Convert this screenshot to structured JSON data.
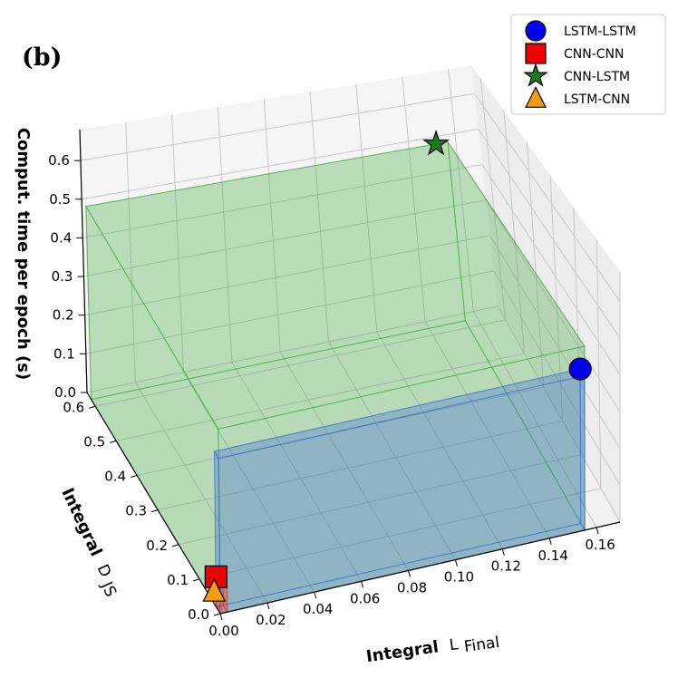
{
  "panel_label": "(b)",
  "chart_data": {
    "type": "scatter3d",
    "axes": {
      "x": {
        "label": "Integral",
        "label_math": "L",
        "label_sub": "Final",
        "ticks": [
          "0.00",
          "0.02",
          "0.04",
          "0.06",
          "0.08",
          "0.10",
          "0.12",
          "0.14",
          "0.16"
        ],
        "range": [
          0,
          0.17
        ]
      },
      "y": {
        "label": "Integral",
        "label_math": "D",
        "label_sub": "JS",
        "ticks": [
          "0.0",
          "0.1",
          "0.2",
          "0.3",
          "0.4",
          "0.5",
          "0.6"
        ],
        "range": [
          0,
          0.64
        ]
      },
      "z": {
        "label": "Comput. time per epoch (s)",
        "ticks": [
          "0.0",
          "0.1",
          "0.2",
          "0.3",
          "0.4",
          "0.5",
          "0.6"
        ],
        "range": [
          0,
          0.68
        ]
      }
    },
    "legend": {
      "position": "top-right",
      "entries": [
        {
          "label": "LSTM-LSTM",
          "marker": "circle",
          "color": "#0000ee"
        },
        {
          "label": "CNN-CNN",
          "marker": "square",
          "color": "#ee0000"
        },
        {
          "label": "CNN-LSTM",
          "marker": "star",
          "color": "#1f7a1f"
        },
        {
          "label": "LSTM-CNN",
          "marker": "triangle",
          "color": "#f39c12"
        }
      ]
    },
    "points": [
      {
        "name": "LSTM-LSTM",
        "x": 0.155,
        "y": 0.02,
        "z": 0.42
      },
      {
        "name": "CNN-CNN",
        "x": 0.001,
        "y": 0.03,
        "z": 0.07
      },
      {
        "name": "CNN-LSTM",
        "x": 0.15,
        "y": 0.62,
        "z": 0.5
      },
      {
        "name": "LSTM-CNN",
        "x": 0.001,
        "y": 0.04,
        "z": 0.02
      }
    ],
    "boxes": [
      {
        "name": "CNN-LSTM",
        "color": "#2ca02c",
        "x": [
          0,
          0.155
        ],
        "y": [
          0,
          0.62
        ],
        "z": [
          0,
          0.5
        ]
      },
      {
        "name": "LSTM-LSTM",
        "color": "#3060e0",
        "x": [
          0,
          0.155
        ],
        "y": [
          0,
          0.02
        ],
        "z": [
          0,
          0.42
        ]
      },
      {
        "name": "CNN-CNN",
        "color": "#ee2020",
        "x": [
          0,
          0.003
        ],
        "y": [
          0,
          0.02
        ],
        "z": [
          0,
          0.07
        ]
      }
    ]
  }
}
